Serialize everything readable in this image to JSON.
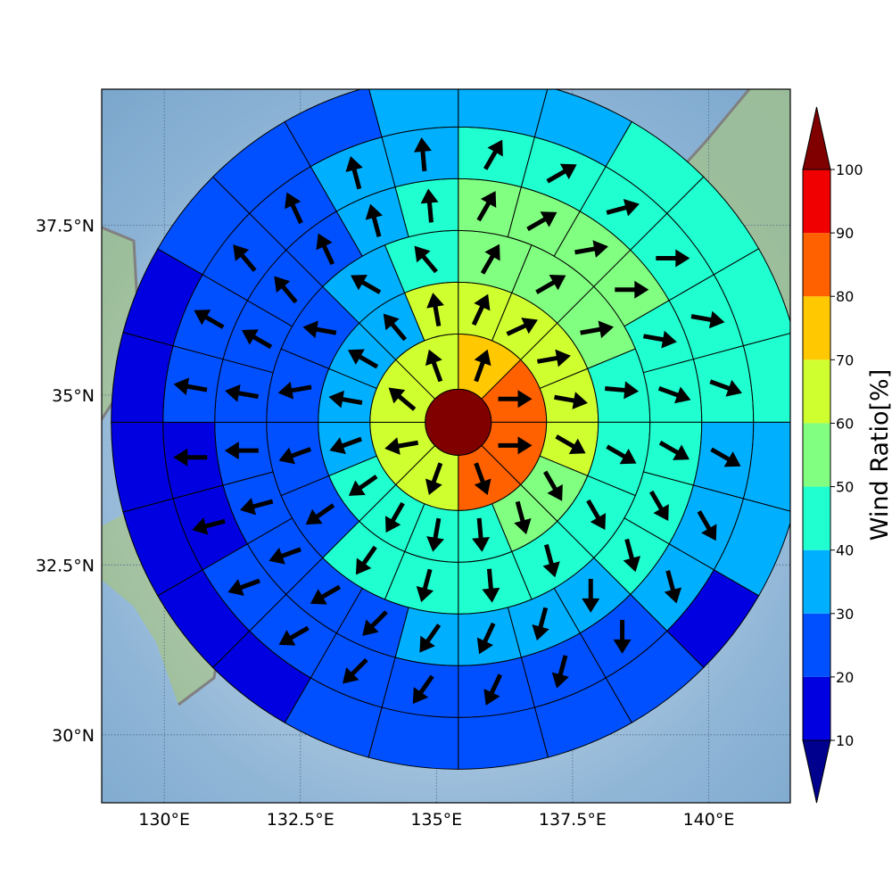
{
  "chart_data": {
    "type": "heatmap",
    "title": "",
    "xlabel": "",
    "ylabel": "",
    "map": {
      "lon_range": [
        128.85,
        141.5
      ],
      "lat_range": [
        29.0,
        39.5
      ],
      "x_ticks": [
        "130°E",
        "132.5°E",
        "135°E",
        "137.5°E",
        "140°E"
      ],
      "x_tick_values": [
        130,
        132.5,
        135,
        137.5,
        140
      ],
      "y_ticks": [
        "30°N",
        "32.5°N",
        "35°N",
        "37.5°N"
      ],
      "y_tick_values": [
        30,
        32.5,
        35,
        37.5
      ],
      "grid": true,
      "ocean_color": "#93b9d8",
      "coastline_color": "#808080",
      "land_color": "#9ebf95"
    },
    "polar_grid": {
      "center_lon": 135.4,
      "center_lat": 34.6,
      "core_value": 100,
      "ring_sectors": [
        8,
        16,
        16,
        24,
        24,
        24
      ],
      "sector_start_deg_cw_from_north": 0,
      "rings": [
        [
          70,
          80,
          80,
          80,
          60,
          60,
          60,
          60
        ],
        [
          60,
          60,
          60,
          60,
          60,
          50,
          50,
          40,
          40,
          40,
          40,
          30,
          30,
          30,
          30,
          60
        ],
        [
          50,
          50,
          50,
          40,
          40,
          40,
          40,
          40,
          40,
          40,
          20,
          20,
          20,
          20,
          30,
          40
        ],
        [
          50,
          50,
          50,
          50,
          40,
          40,
          40,
          40,
          40,
          30,
          30,
          30,
          30,
          20,
          20,
          20,
          20,
          20,
          20,
          20,
          20,
          20,
          30,
          40
        ],
        [
          40,
          40,
          40,
          40,
          40,
          40,
          30,
          30,
          30,
          20,
          20,
          20,
          20,
          20,
          20,
          20,
          10,
          10,
          20,
          20,
          20,
          20,
          30,
          30
        ],
        [
          30,
          30,
          40,
          40,
          40,
          40,
          30,
          30,
          10,
          20,
          20,
          20,
          20,
          20,
          10,
          10,
          10,
          10,
          10,
          10,
          20,
          20,
          20,
          30
        ]
      ],
      "arrows_deg_to": {
        "core": [],
        "ring1": [
          20,
          90,
          90,
          160,
          200,
          260,
          310,
          340
        ],
        "ring2": [
          25,
          65,
          80,
          100,
          120,
          150,
          165,
          175,
          190,
          210,
          235,
          250,
          280,
          300,
          320,
          350
        ],
        "ring3": [
          30,
          60,
          80,
          95,
          120,
          150,
          165,
          175,
          195,
          215,
          235,
          250,
          260,
          280,
          300,
          320
        ],
        "ring4": [
          30,
          60,
          80,
          90,
          100,
          110,
          120,
          150,
          165,
          180,
          195,
          205,
          215,
          225,
          240,
          250,
          255,
          270,
          280,
          300,
          320,
          335,
          345,
          355
        ],
        "ring5": [
          30,
          60,
          75,
          90,
          100,
          110,
          120,
          150,
          165,
          180,
          195,
          205,
          215,
          225,
          240,
          250,
          255,
          270,
          280,
          300,
          320,
          335,
          345,
          355
        ]
      }
    },
    "colorbar": {
      "label": "Wind Ratio[%]",
      "boundaries": [
        10,
        20,
        30,
        40,
        50,
        60,
        70,
        80,
        90,
        100
      ],
      "tick_labels": [
        "10",
        "20",
        "30",
        "40",
        "50",
        "60",
        "70",
        "80",
        "90",
        "100"
      ],
      "colors": [
        "#0000e0",
        "#0050ff",
        "#00b0ff",
        "#20ffd0",
        "#80ff80",
        "#d0ff30",
        "#ffc800",
        "#ff6000",
        "#f00000"
      ],
      "under_color": "#00008f",
      "over_color": "#800000",
      "extend": "both"
    }
  }
}
